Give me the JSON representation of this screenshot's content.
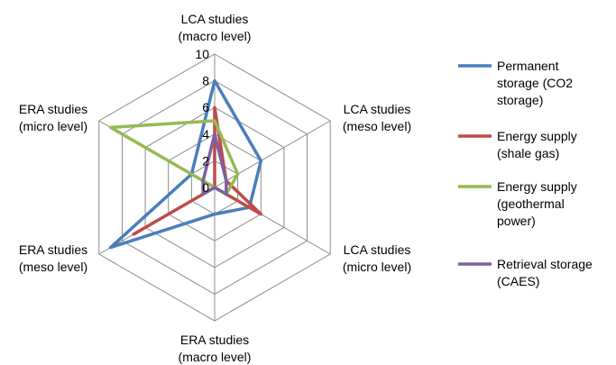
{
  "chart_data": {
    "type": "radar",
    "categories": [
      [
        "LCA studies",
        "(macro level)"
      ],
      [
        "LCA studies",
        "(meso level)"
      ],
      [
        "LCA studies",
        "(micro level)"
      ],
      [
        "ERA studies",
        "(macro level)"
      ],
      [
        "ERA studies",
        "(meso level)"
      ],
      [
        "ERA studies",
        "(micro level)"
      ]
    ],
    "r_ticks": [
      0,
      2,
      4,
      6,
      8,
      10
    ],
    "rlim": [
      0,
      10
    ],
    "legend_position": "right",
    "grid": true,
    "series": [
      {
        "name": [
          "Permanent",
          "storage (CO2",
          "storage)"
        ],
        "color": "#4a7ebb",
        "values": [
          8,
          4,
          3,
          2,
          9,
          2
        ]
      },
      {
        "name": [
          "Energy supply",
          "(shale gas)"
        ],
        "color": "#be4b48",
        "values": [
          6,
          1,
          4,
          0,
          7,
          0
        ]
      },
      {
        "name": [
          "Energy supply",
          "(geothermal",
          "power)"
        ],
        "color": "#98b954",
        "values": [
          5,
          2,
          1,
          0,
          0,
          9
        ]
      },
      {
        "name": [
          "Retrieval storage",
          "(CAES)"
        ],
        "color": "#7d60a0",
        "values": [
          4,
          1,
          1,
          0,
          1,
          1
        ]
      }
    ]
  }
}
